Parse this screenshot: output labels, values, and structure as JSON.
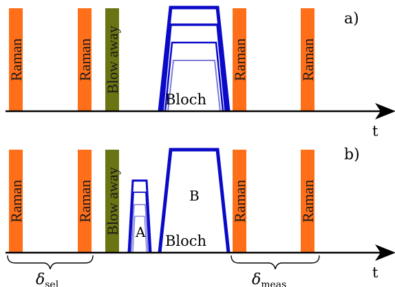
{
  "panels": {
    "a": {
      "label": "a)",
      "pulse_labels": [
        "Raman",
        "Raman",
        "Blow away",
        "Raman",
        "Raman"
      ],
      "bloch_label": "Bloch",
      "axis_label": "t"
    },
    "b": {
      "label": "b)",
      "pulse_labels": [
        "Raman",
        "Raman",
        "Blow away",
        "Raman",
        "Raman"
      ],
      "pulse_a_label": "A",
      "pulse_b_label": "B",
      "bloch_label": "Bloch",
      "axis_label": "t",
      "delta_sel": {
        "symbol": "δ",
        "subscript": "sel"
      },
      "delta_meas": {
        "symbol": "δ",
        "subscript": "meas"
      }
    }
  },
  "colors": {
    "raman": "#ff6f1a",
    "blow_away": "#6b7412",
    "bloch_strong": "#0a0ac8",
    "bloch_weak": "#7a7ad8",
    "axis": "#000000"
  }
}
